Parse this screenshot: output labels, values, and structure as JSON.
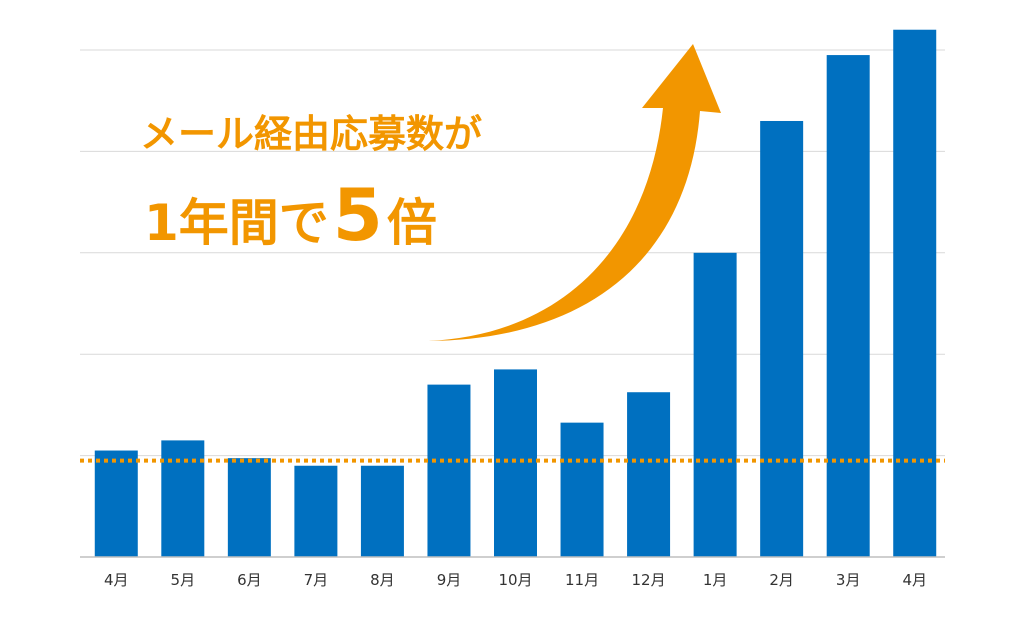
{
  "headline": {
    "line1": "メール経由応募数が",
    "line2_prefix": "1年間で",
    "line2_number": "5",
    "line2_suffix": "倍"
  },
  "colors": {
    "bar": "#0070C0",
    "accent": "#F29600",
    "grid": "#D9D9D9",
    "axis": "#BFBFBF",
    "text": "#333333"
  },
  "chart_data": {
    "type": "bar",
    "categories": [
      "4月",
      "5月",
      "6月",
      "7月",
      "8月",
      "9月",
      "10月",
      "11月",
      "12月",
      "1月",
      "2月",
      "3月",
      "4月"
    ],
    "values": [
      21,
      23,
      19.5,
      18,
      18,
      34,
      37,
      26.5,
      32.5,
      60,
      86,
      99,
      104
    ],
    "ylim": [
      0,
      100
    ],
    "yticks": [
      0,
      20,
      40,
      60,
      80,
      100
    ],
    "grid": true,
    "reference_line": {
      "value": 19,
      "style": "dotted"
    },
    "annotation": "upward-arrow",
    "title": "",
    "xlabel": "",
    "ylabel": ""
  }
}
